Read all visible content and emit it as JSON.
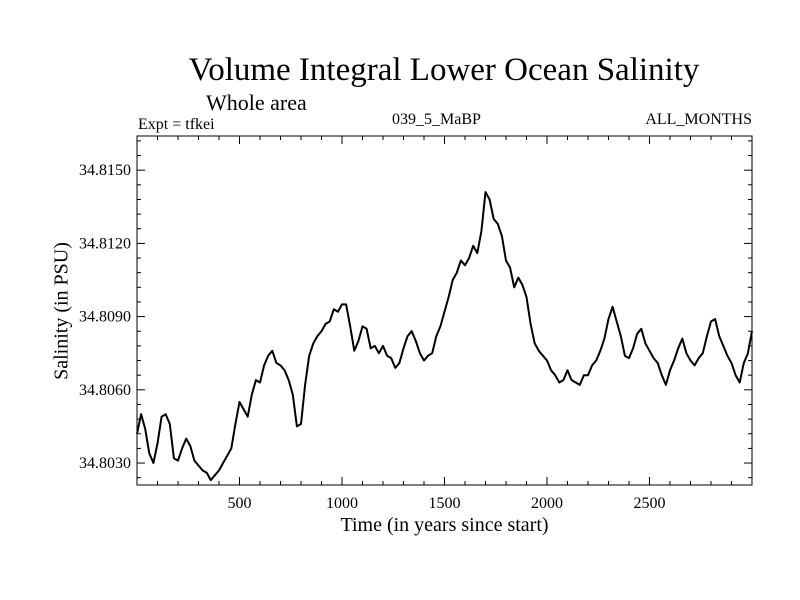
{
  "title": "Volume Integral Lower Ocean Salinity",
  "subtitle": "Whole area",
  "header": {
    "left": "Expt = tfkei",
    "center": "039_5_MaBP",
    "right": "ALL_MONTHS"
  },
  "chart_data": {
    "type": "line",
    "title": "Volume Integral Lower Ocean Salinity",
    "subtitle": "Whole area",
    "xlabel": "Time (in years since start)",
    "ylabel": "Salinity (in PSU)",
    "xlim": [
      0,
      3000
    ],
    "ylim": [
      34.8021,
      34.8164
    ],
    "xticks": [
      {
        "value": 500,
        "label": "500"
      },
      {
        "value": 1000,
        "label": "1000"
      },
      {
        "value": 1500,
        "label": "1500"
      },
      {
        "value": 2000,
        "label": "2000"
      },
      {
        "value": 2500,
        "label": "2500"
      }
    ],
    "yticks": [
      {
        "value": 34.803,
        "label": "34.8030"
      },
      {
        "value": 34.806,
        "label": "34.8060"
      },
      {
        "value": 34.809,
        "label": "34.8090"
      },
      {
        "value": 34.812,
        "label": "34.8120"
      },
      {
        "value": 34.815,
        "label": "34.8150"
      }
    ],
    "grid": false,
    "line_color": "#000000",
    "series": [
      {
        "x": [
          0,
          20,
          40,
          60,
          80,
          100,
          120,
          140,
          160,
          180,
          200,
          220,
          240,
          260,
          280,
          300,
          320,
          340,
          360,
          380,
          400,
          420,
          440,
          460,
          480,
          500,
          520,
          540,
          560,
          580,
          600,
          620,
          640,
          660,
          680,
          700,
          720,
          740,
          760,
          780,
          800,
          820,
          840,
          860,
          880,
          900,
          920,
          940,
          960,
          980,
          1000,
          1020,
          1040,
          1060,
          1080,
          1100,
          1120,
          1140,
          1160,
          1180,
          1200,
          1220,
          1240,
          1260,
          1280,
          1300,
          1320,
          1340,
          1360,
          1380,
          1400,
          1420,
          1440,
          1460,
          1480,
          1500,
          1520,
          1540,
          1560,
          1580,
          1600,
          1620,
          1640,
          1660,
          1680,
          1700,
          1720,
          1740,
          1760,
          1780,
          1800,
          1820,
          1840,
          1860,
          1880,
          1900,
          1920,
          1940,
          1960,
          1980,
          2000,
          2020,
          2040,
          2060,
          2080,
          2100,
          2120,
          2140,
          2160,
          2180,
          2200,
          2220,
          2240,
          2260,
          2280,
          2300,
          2320,
          2340,
          2360,
          2380,
          2400,
          2420,
          2440,
          2460,
          2480,
          2500,
          2520,
          2540,
          2560,
          2580,
          2600,
          2620,
          2640,
          2660,
          2680,
          2700,
          2720,
          2740,
          2760,
          2780,
          2800,
          2820,
          2840,
          2860,
          2880,
          2900,
          2920,
          2940,
          2960,
          2980,
          3000
        ],
        "y": [
          34.8042,
          34.805,
          34.8044,
          34.8034,
          34.803,
          34.8038,
          34.8049,
          34.805,
          34.8046,
          34.8032,
          34.8031,
          34.8036,
          34.804,
          34.8037,
          34.8031,
          34.8029,
          34.8027,
          34.8026,
          34.8023,
          34.8025,
          34.8027,
          34.803,
          34.8033,
          34.8036,
          34.8046,
          34.8055,
          34.8052,
          34.8049,
          34.8058,
          34.8064,
          34.8063,
          34.807,
          34.8074,
          34.8076,
          34.8071,
          34.807,
          34.8068,
          34.8064,
          34.8058,
          34.8045,
          34.8046,
          34.8062,
          34.8074,
          34.8079,
          34.8082,
          34.8084,
          34.8087,
          34.8088,
          34.8093,
          34.8092,
          34.8095,
          34.8095,
          34.8086,
          34.8076,
          34.808,
          34.8086,
          34.8085,
          34.8077,
          34.8078,
          34.8075,
          34.8078,
          34.8074,
          34.8073,
          34.8069,
          34.8071,
          34.8077,
          34.8082,
          34.8084,
          34.808,
          34.8075,
          34.8072,
          34.8074,
          34.8075,
          34.8082,
          34.8086,
          34.8092,
          34.8098,
          34.8105,
          34.8108,
          34.8113,
          34.8111,
          34.8114,
          34.8119,
          34.8116,
          34.8125,
          34.8141,
          34.8138,
          34.813,
          34.8128,
          34.8123,
          34.8113,
          34.811,
          34.8102,
          34.8106,
          34.8103,
          34.8098,
          34.8087,
          34.8079,
          34.8076,
          34.8074,
          34.8072,
          34.8068,
          34.8066,
          34.8063,
          34.8064,
          34.8068,
          34.8064,
          34.8063,
          34.8062,
          34.8066,
          34.8066,
          34.807,
          34.8072,
          34.8076,
          34.8081,
          34.8089,
          34.8094,
          34.8088,
          34.8082,
          34.8074,
          34.8073,
          34.8077,
          34.8083,
          34.8085,
          34.8079,
          34.8076,
          34.8073,
          34.8071,
          34.8066,
          34.8062,
          34.8068,
          34.8072,
          34.8077,
          34.8081,
          34.8075,
          34.8072,
          34.807,
          34.8073,
          34.8075,
          34.8082,
          34.8088,
          34.8089,
          34.8082,
          34.8078,
          34.8074,
          34.8071,
          34.8066,
          34.8063,
          34.8071,
          34.8075,
          34.8084
        ]
      }
    ]
  }
}
